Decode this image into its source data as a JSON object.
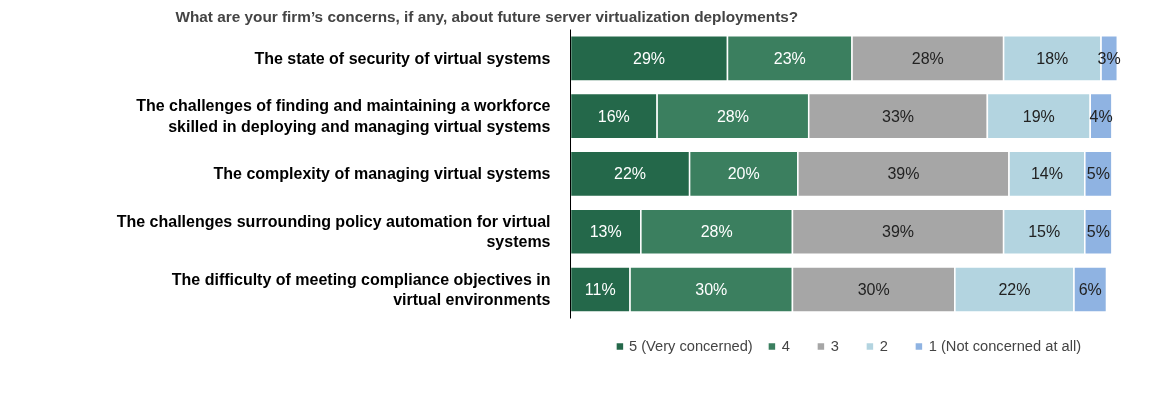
{
  "chart_data": {
    "type": "bar",
    "orientation": "horizontal",
    "stacked": true,
    "title": "What are your firm’s  concerns, if any, about future server virtualization  deployments?",
    "categories": [
      "The state of security of virtual systems",
      "The challenges of finding and maintaining a workforce skilled in deploying and managing virtual systems",
      "The complexity of managing virtual systems",
      "The challenges surrounding policy automation for virtual systems",
      "The difficulty of meeting compliance objectives in virtual environments"
    ],
    "series": [
      {
        "name": "5 (Very concerned)",
        "color": "#24684a",
        "values": [
          29,
          16,
          22,
          13,
          11
        ],
        "value_labels": [
          "29%",
          "16%",
          "22%",
          "13%",
          "11%"
        ]
      },
      {
        "name": "4",
        "color": "#3b7f5f",
        "values": [
          23,
          28,
          20,
          28,
          30
        ],
        "value_labels": [
          "23%",
          "28%",
          "20%",
          "28%",
          "30%"
        ]
      },
      {
        "name": "3",
        "color": "#a6a6a6",
        "values": [
          28,
          33,
          39,
          39,
          30
        ],
        "value_labels": [
          "28%",
          "33%",
          "39%",
          "39%",
          "30%"
        ]
      },
      {
        "name": "2",
        "color": "#b3d4e0",
        "values": [
          18,
          19,
          14,
          15,
          22
        ],
        "value_labels": [
          "18%",
          "19%",
          "14%",
          "15%",
          "22%"
        ]
      },
      {
        "name": "1 (Not concerned at all)",
        "color": "#8fb3e2",
        "values": [
          3,
          4,
          5,
          5,
          6
        ],
        "value_labels": [
          "3%",
          "4%",
          "5%",
          "5%",
          "6%"
        ]
      }
    ],
    "tick_labels": "y",
    "legend": "bottom",
    "grid": false
  }
}
